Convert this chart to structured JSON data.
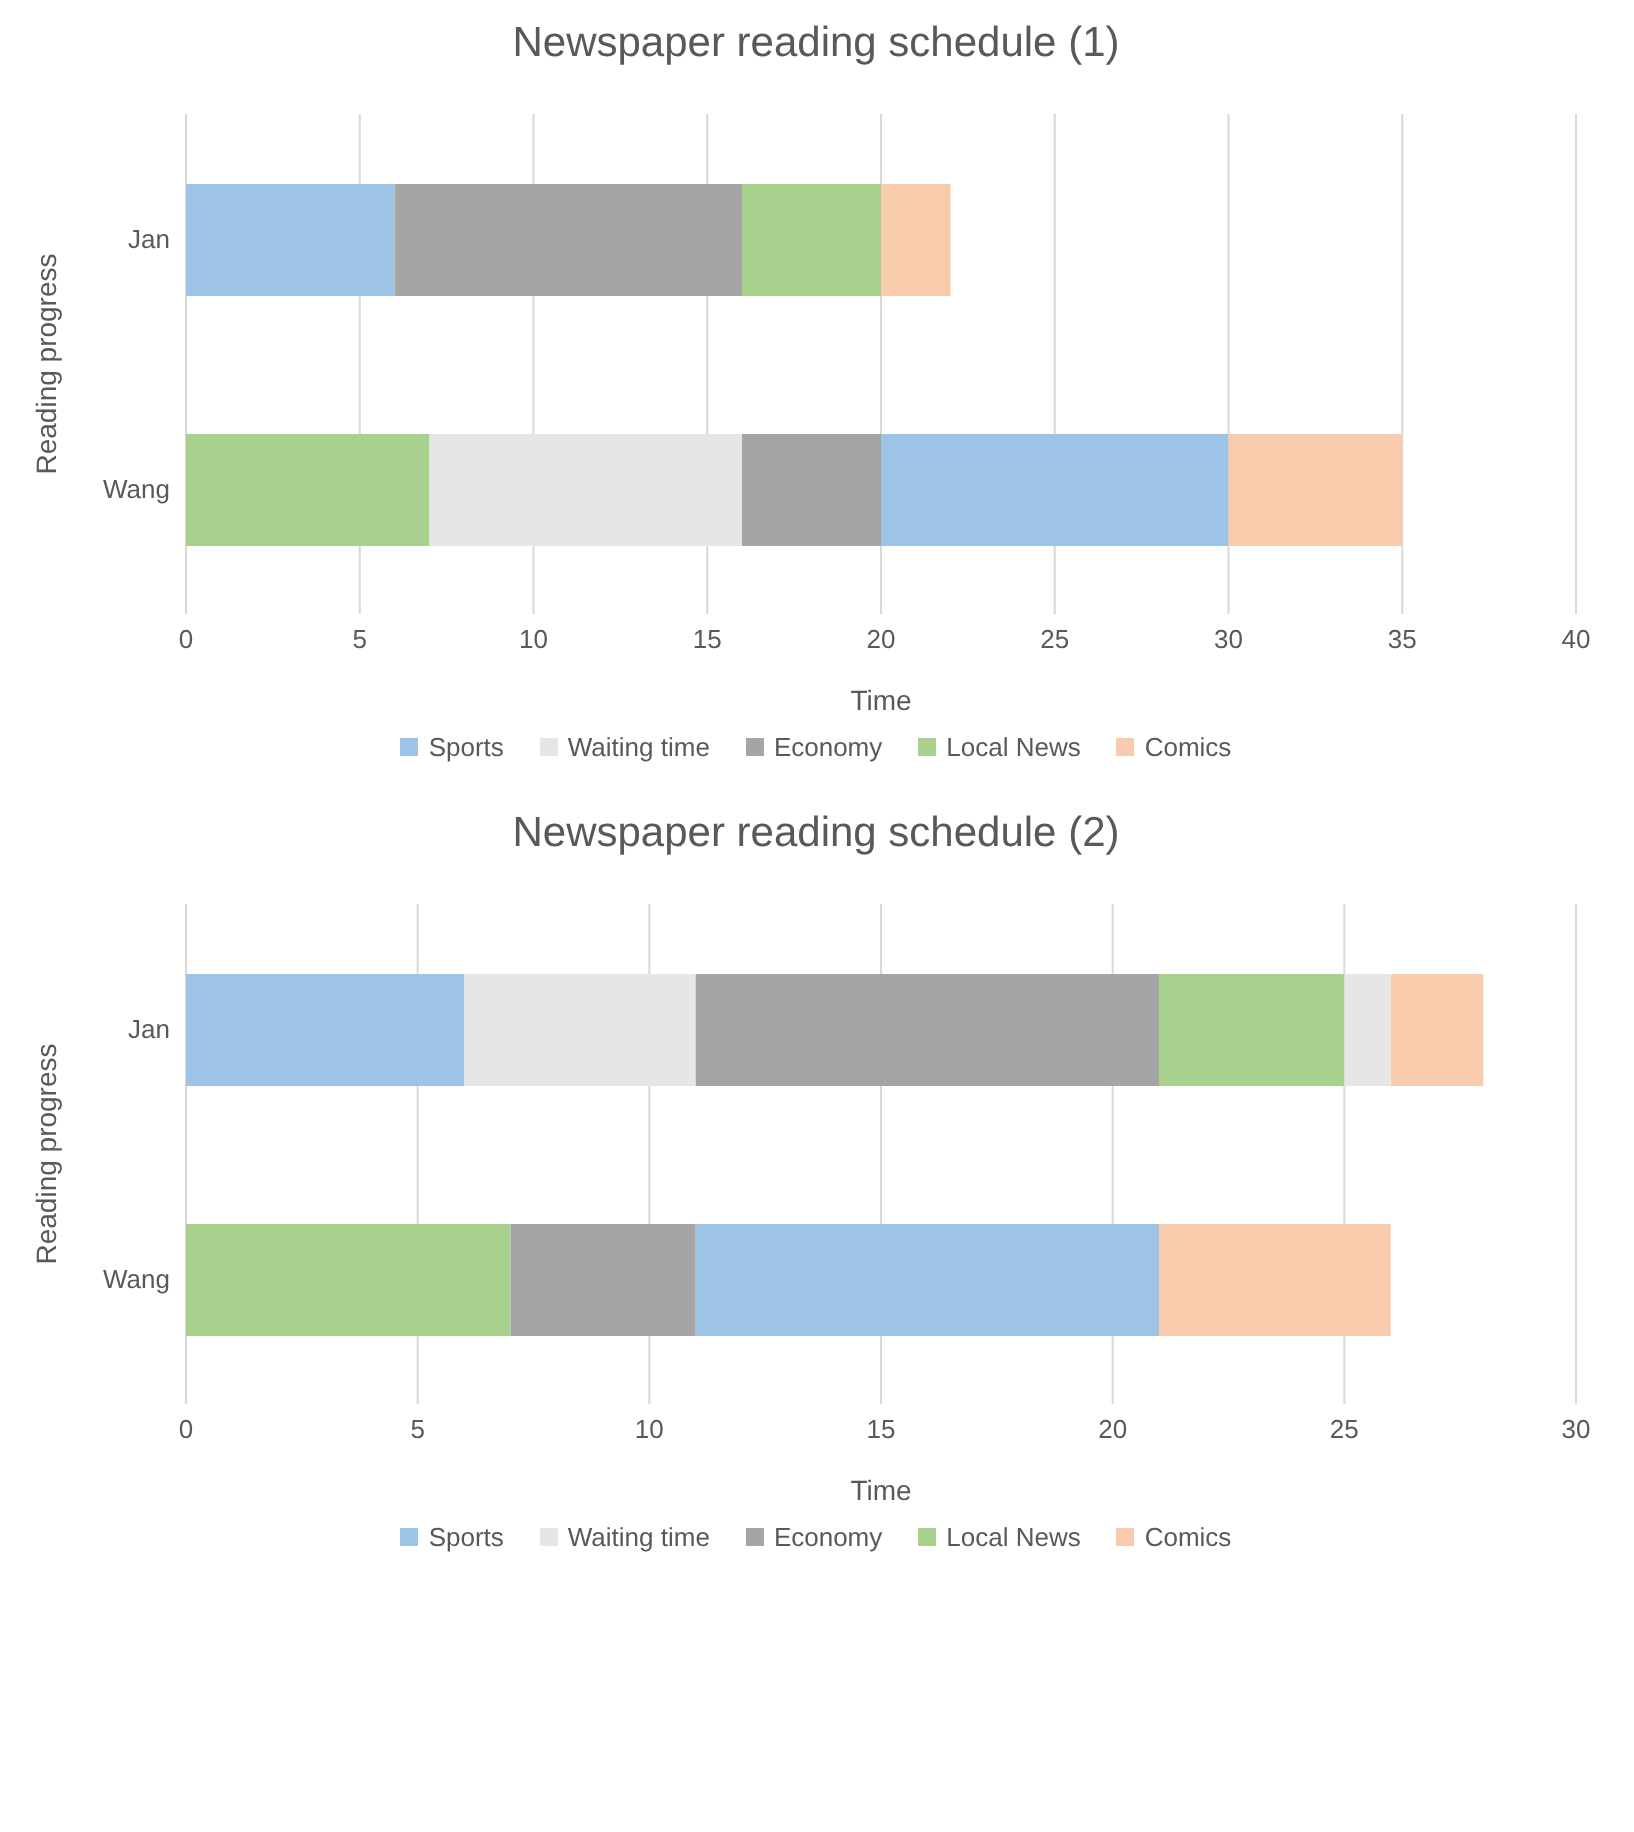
{
  "chart_data": [
    {
      "type": "bar",
      "orientation": "horizontal",
      "title": "Newspaper reading schedule  (1)",
      "xlabel": "Time",
      "ylabel": "Reading progress",
      "categories": [
        "Jan",
        "Wang"
      ],
      "xlim": [
        0,
        40
      ],
      "xticks": [
        0,
        5,
        10,
        15,
        20,
        25,
        30,
        35,
        40
      ],
      "grid": "x",
      "legend": "bottom",
      "series": [
        {
          "name": "Sports",
          "color": "#9dc3e6",
          "values": [
            6,
            10
          ],
          "base": [
            0,
            20
          ]
        },
        {
          "name": "Waiting time",
          "color": "#e7e6e6",
          "values": [
            null,
            9
          ],
          "base": [
            null,
            7
          ]
        },
        {
          "name": "Economy",
          "color": "#a5a5a5",
          "values": [
            10,
            4
          ],
          "base": [
            6,
            16
          ]
        },
        {
          "name": "Local News",
          "color": "#a9d18e",
          "values": [
            4,
            7
          ],
          "base": [
            16,
            0
          ]
        },
        {
          "name": "Comics",
          "color": "#f8cbad",
          "values": [
            2,
            5
          ],
          "base": [
            20,
            30
          ]
        }
      ]
    },
    {
      "type": "bar",
      "orientation": "horizontal",
      "title": "Newspaper reading schedule (2)",
      "xlabel": "Time",
      "ylabel": "Reading progress",
      "categories": [
        "Jan",
        "Wang"
      ],
      "xlim": [
        0,
        30
      ],
      "xticks": [
        0,
        5,
        10,
        15,
        20,
        25,
        30
      ],
      "grid": "x",
      "legend": "bottom",
      "series": [
        {
          "name": "Sports",
          "color": "#9dc3e6",
          "values": [
            6,
            10
          ],
          "base": [
            0,
            11
          ]
        },
        {
          "name": "Waiting time",
          "color": "#e7e6e6",
          "values": [
            5,
            null
          ],
          "base": [
            6,
            null
          ]
        },
        {
          "name": "Economy",
          "color": "#a5a5a5",
          "values": [
            10,
            4
          ],
          "base": [
            11,
            7
          ]
        },
        {
          "name": "Local News",
          "color": "#a9d18e",
          "values": [
            4,
            7
          ],
          "base": [
            21,
            0
          ]
        },
        {
          "name": "Comics",
          "color": "#f8cbad",
          "values": [
            2,
            5
          ],
          "base": [
            26,
            21
          ]
        },
        {
          "color": "#e7e6e6",
          "values": [
            1,
            null
          ],
          "base": [
            25,
            null
          ]
        }
      ]
    }
  ]
}
